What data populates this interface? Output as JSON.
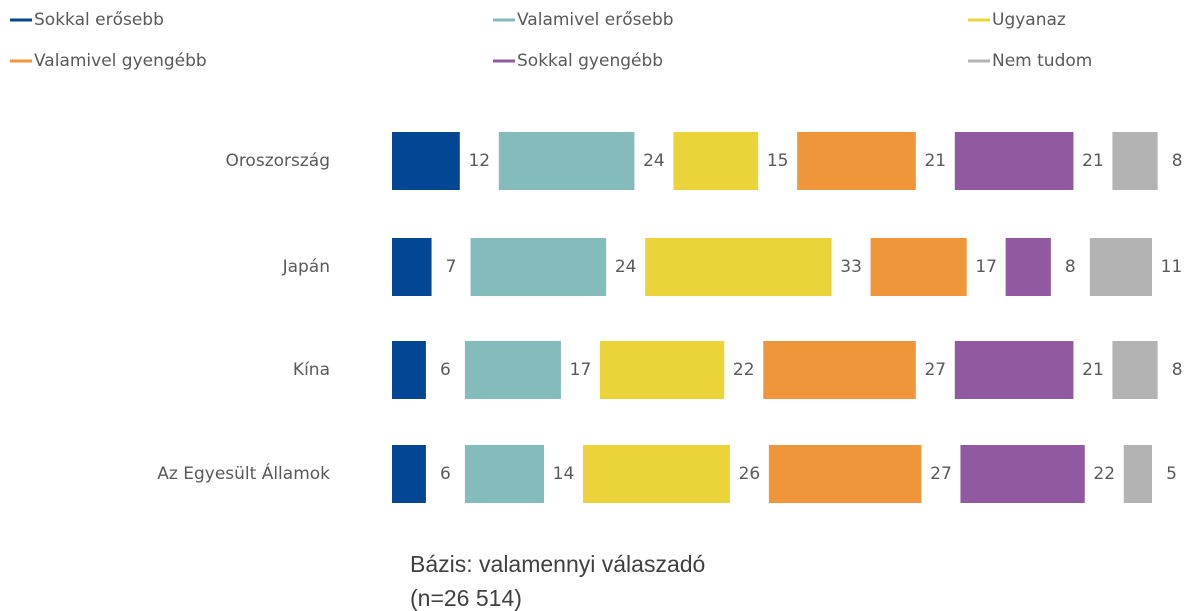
{
  "chart_data": {
    "type": "bar",
    "orientation": "horizontal",
    "stacked": true,
    "categories": [
      "Oroszország",
      "Japán",
      "Kína",
      "Az Egyesült Államok"
    ],
    "series": [
      {
        "name": "Sokkal erősebb",
        "color": "#034694",
        "values": [
          12,
          7,
          6,
          6
        ]
      },
      {
        "name": "Valamivel erősebb",
        "color": "#84bcbc",
        "values": [
          24,
          24,
          17,
          14
        ]
      },
      {
        "name": "Ugyanaz",
        "color": "#ebd33a",
        "values": [
          15,
          33,
          22,
          26
        ]
      },
      {
        "name": "Valamivel gyengébb",
        "color": "#f0963a",
        "values": [
          21,
          17,
          27,
          27
        ]
      },
      {
        "name": "Sokkal gyengébb",
        "color": "#9159a0",
        "values": [
          21,
          8,
          21,
          22
        ]
      },
      {
        "name": "Nem tudom",
        "color": "#b3b3b3",
        "values": [
          8,
          11,
          8,
          5
        ]
      }
    ],
    "legend": "top",
    "notes": [
      "Bázis: valamennyi válaszadó",
      "(n=26 514)"
    ]
  }
}
